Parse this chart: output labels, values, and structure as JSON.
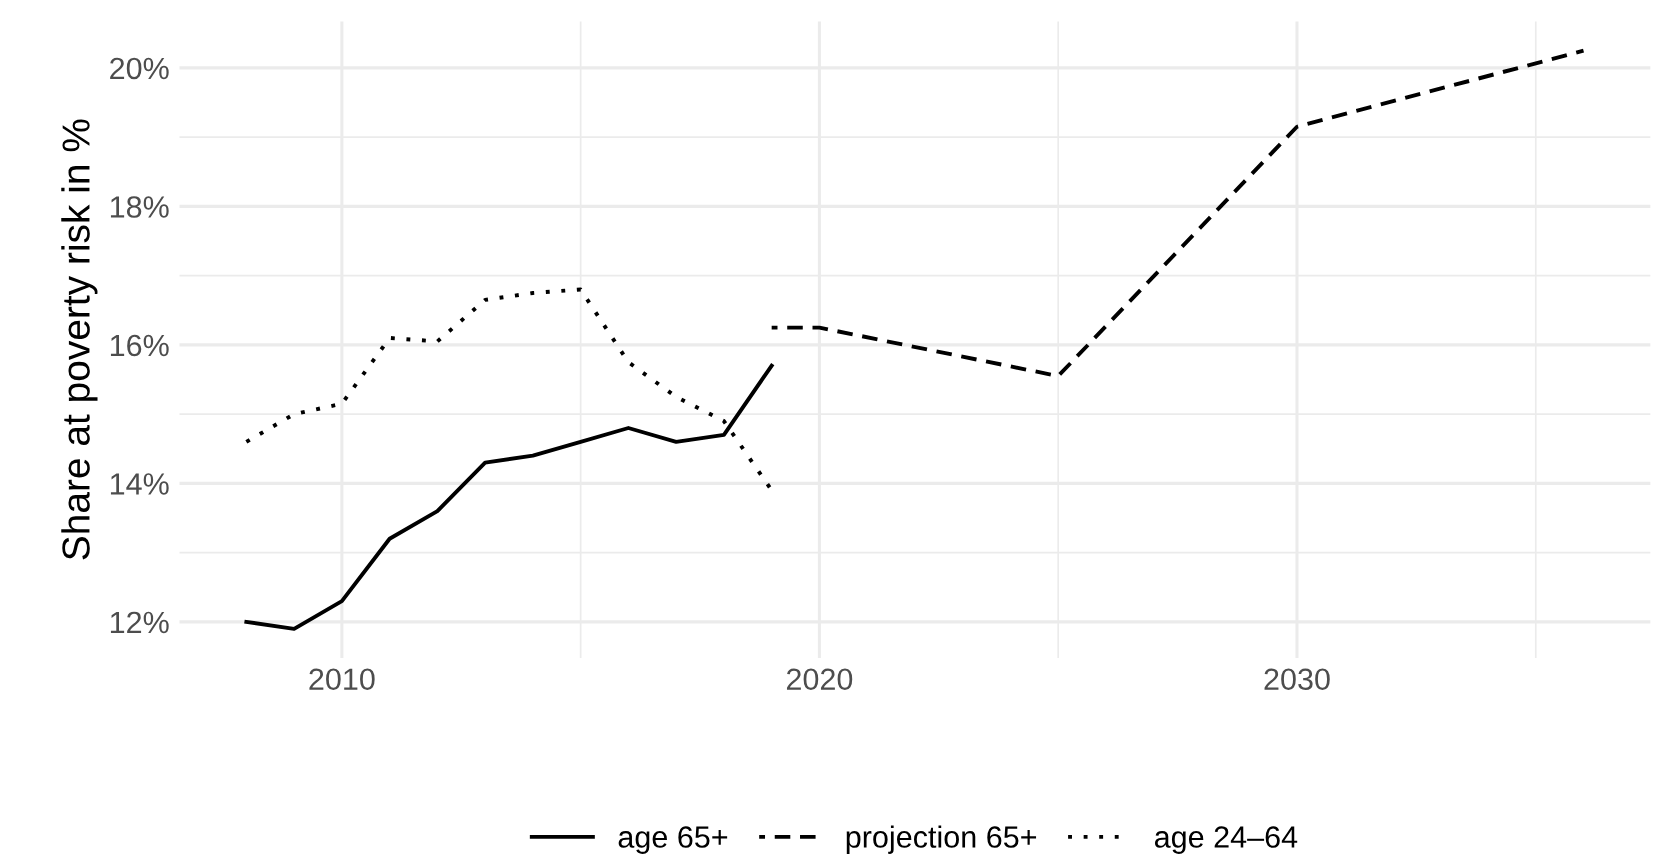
{
  "chart_data": {
    "type": "line",
    "ylabel": "Share at poverty risk in %",
    "series": [
      {
        "name": "age 65+",
        "color": "#000000",
        "line_style": "solid",
        "x": [
          2008,
          2009,
          2010,
          2011,
          2012,
          2013,
          2014,
          2015,
          2016,
          2017,
          2018,
          2019
        ],
        "values": [
          12.0,
          11.9,
          12.3,
          13.2,
          13.6,
          14.3,
          14.4,
          14.6,
          14.8,
          14.6,
          14.7,
          15.7
        ]
      },
      {
        "name": "projection 65+",
        "color": "#000000",
        "line_style": "dashed",
        "x": [
          2019,
          2020,
          2025,
          2030,
          2036
        ],
        "values": [
          16.25,
          16.25,
          15.55,
          19.15,
          20.25
        ]
      },
      {
        "name": "age 24–64",
        "color": "#000000",
        "line_style": "dotted",
        "x": [
          2008,
          2009,
          2010,
          2011,
          2012,
          2013,
          2014,
          2015,
          2016,
          2017,
          2018,
          2019
        ],
        "values": [
          14.6,
          15.0,
          15.15,
          16.1,
          16.05,
          16.65,
          16.75,
          16.8,
          15.75,
          15.25,
          14.9,
          13.9
        ]
      }
    ],
    "xlim": [
      2006.6,
      2037.4
    ],
    "ylim": [
      11.48,
      20.67
    ],
    "xticks": [
      2010,
      {
        "value": 2015,
        "label": null
      },
      2020,
      {
        "value": 2025,
        "label": null
      },
      2030,
      {
        "value": 2035,
        "label": null
      }
    ],
    "yticks": [
      {
        "value": 12,
        "label": "12%"
      },
      {
        "value": 13,
        "label": null
      },
      {
        "value": 14,
        "label": "14%"
      },
      {
        "value": 15,
        "label": null
      },
      {
        "value": 16,
        "label": "16%"
      },
      {
        "value": 17,
        "label": null
      },
      {
        "value": 18,
        "label": "18%"
      },
      {
        "value": 19,
        "label": null
      },
      {
        "value": 20,
        "label": "20%"
      }
    ],
    "grid": true,
    "legend": "bottom"
  }
}
